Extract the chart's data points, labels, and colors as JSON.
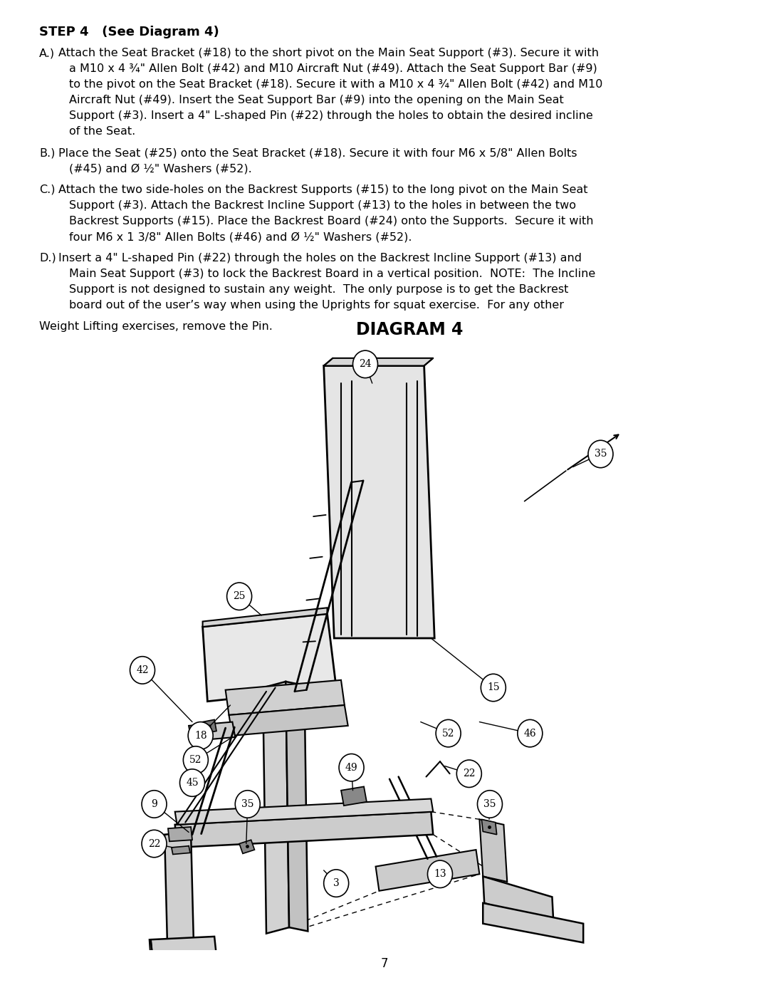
{
  "page_bg": "#ffffff",
  "text_color": "#000000",
  "page_width": 10.8,
  "page_height": 13.97,
  "dpi": 100,
  "step_title": "STEP 4   (See Diagram 4)",
  "para_a_label": "A.)",
  "para_a_text": "Attach the Seat Bracket (#18) to the short pivot on the Main Seat Support (#3). Secure it with\n     a M10 x 4 ¾\" Allen Bolt (#42) and M10 Aircraft Nut (#49). Attach the Seat Support Bar (#9)\n     to the pivot on the Seat Bracket (#18). Secure it with a M10 x 4 ¾\" Allen Bolt (#42) and M10\n     Aircraft Nut (#49). Insert the Seat Support Bar (#9) into the opening on the Main Seat\n     Support (#3). Insert a 4\" L-shaped Pin (#22) through the holes to obtain the desired incline\n     of the Seat.",
  "para_b_label": "B.)",
  "para_b_text": "Place the Seat (#25) onto the Seat Bracket (#18). Secure it with four M6 x 5/8\" Allen Bolts\n     (#45) and Ø ½\" Washers (#52).",
  "para_c_label": "C.)",
  "para_c_text": "Attach the two side-holes on the Backrest Supports (#15) to the long pivot on the Main Seat\n     Support (#3). Attach the Backrest Incline Support (#13) to the holes in between the two\n     Backrest Supports (#15). Place the Backrest Board (#24) onto the Supports.  Secure it with\n     four M6 x 1 3/8\" Allen Bolts (#46) and Ø ½\" Washers (#52).",
  "para_d_label": "D.)",
  "para_d_text": "Insert a 4\" L-shaped Pin (#22) through the holes on the Backrest Incline Support (#13) and\n     Main Seat Support (#3) to lock the Backrest Board in a vertical position.  NOTE:  The Incline\n     Support is not designed to sustain any weight.  The only purpose is to get the Backrest\n     board out of the user’s way when using the Uprights for squat exercise.  For any other",
  "last_line": "Weight Lifting exercises, remove the Pin.",
  "diagram_title": "DIAGRAM 4",
  "page_number": "7",
  "font_size_title": 13,
  "font_size_body": 11.5,
  "font_size_diagram_title": 17,
  "font_size_page_num": 12
}
